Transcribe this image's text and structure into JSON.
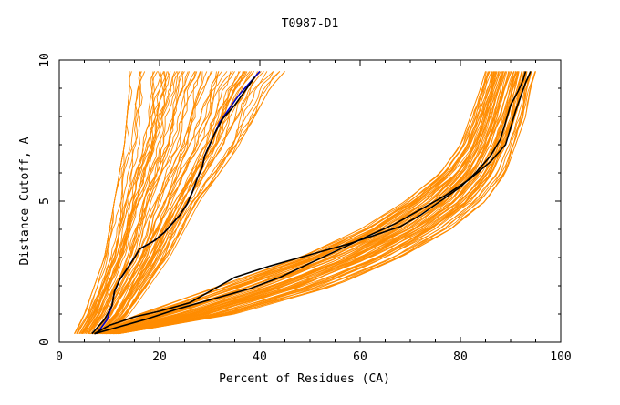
{
  "chart_data": {
    "type": "line",
    "title": "T0987-D1",
    "xlabel": "Percent of Residues (CA)",
    "ylabel": "Distance Cutoff, A",
    "xlim": [
      0,
      100
    ],
    "ylim": [
      0,
      10
    ],
    "x_ticks": [
      "0",
      "20",
      "40",
      "60",
      "80",
      "100"
    ],
    "y_ticks": [
      "0",
      "5",
      "10"
    ],
    "grid": false,
    "colors": {
      "background_series": "#ff8c00",
      "highlight_blue": "#0000cc",
      "highlight_black": "#000000"
    },
    "background_band_a": {
      "left_edge": [
        [
          3,
          0.3
        ],
        [
          5,
          1.0
        ],
        [
          7,
          2.0
        ],
        [
          9,
          3.0
        ],
        [
          10,
          4.0
        ],
        [
          11,
          5.0
        ],
        [
          12,
          6.0
        ],
        [
          13,
          7.0
        ],
        [
          13.5,
          8.0
        ],
        [
          14,
          9.0
        ],
        [
          14,
          9.6
        ]
      ],
      "right_edge": [
        [
          10,
          0.3
        ],
        [
          14,
          1.0
        ],
        [
          18,
          2.0
        ],
        [
          22,
          3.0
        ],
        [
          25,
          4.0
        ],
        [
          28,
          5.0
        ],
        [
          32,
          6.0
        ],
        [
          36,
          7.0
        ],
        [
          39,
          8.0
        ],
        [
          42,
          9.0
        ],
        [
          45,
          9.6
        ]
      ]
    },
    "background_band_b": {
      "left_edge": [
        [
          6,
          0.3
        ],
        [
          16,
          1.0
        ],
        [
          32,
          2.0
        ],
        [
          48,
          3.0
        ],
        [
          60,
          4.0
        ],
        [
          69,
          5.0
        ],
        [
          76,
          6.0
        ],
        [
          80,
          7.0
        ],
        [
          82,
          8.0
        ],
        [
          84,
          9.0
        ],
        [
          85,
          9.6
        ]
      ],
      "right_edge": [
        [
          12,
          0.3
        ],
        [
          35,
          1.0
        ],
        [
          55,
          2.0
        ],
        [
          68,
          3.0
        ],
        [
          78,
          4.0
        ],
        [
          85,
          5.0
        ],
        [
          89,
          6.0
        ],
        [
          91,
          7.0
        ],
        [
          93,
          8.0
        ],
        [
          94,
          9.0
        ],
        [
          95,
          9.6
        ]
      ]
    },
    "series": [
      {
        "color": "#0000cc",
        "x": [
          7.5,
          9.5,
          10.5,
          11,
          12,
          13.5,
          15,
          16,
          19,
          21,
          22.5,
          24,
          25.5,
          26.5,
          27.5,
          28.5,
          29,
          30,
          31,
          32,
          34,
          36,
          38,
          40
        ],
        "y": [
          0.3,
          0.8,
          1.3,
          1.8,
          2.2,
          2.6,
          3.0,
          3.3,
          3.6,
          3.9,
          4.2,
          4.5,
          4.9,
          5.3,
          5.8,
          6.2,
          6.6,
          7.0,
          7.4,
          7.8,
          8.3,
          8.8,
          9.2,
          9.6
        ]
      },
      {
        "color": "#000000",
        "x": [
          6.5,
          9,
          10.5,
          11,
          12,
          13.5,
          15,
          16,
          19,
          21,
          22.5,
          24,
          25.5,
          26.5,
          27.5,
          28.5,
          29,
          30,
          31,
          32.5,
          35,
          37,
          39
        ],
        "y": [
          0.3,
          0.8,
          1.3,
          1.8,
          2.2,
          2.6,
          3.0,
          3.3,
          3.6,
          3.9,
          4.2,
          4.5,
          4.9,
          5.3,
          5.8,
          6.2,
          6.6,
          7.0,
          7.4,
          7.9,
          8.4,
          8.9,
          9.4
        ]
      },
      {
        "color": "#000000",
        "x": [
          7,
          10,
          15,
          20,
          26,
          30,
          35,
          42,
          50,
          58,
          63,
          68,
          72,
          76,
          80,
          83,
          86,
          88,
          89,
          90,
          91.5,
          92.5,
          93
        ],
        "y": [
          0.3,
          0.6,
          0.9,
          1.1,
          1.4,
          1.8,
          2.3,
          2.7,
          3.1,
          3.5,
          3.8,
          4.1,
          4.5,
          5.0,
          5.5,
          6.0,
          6.6,
          7.2,
          7.8,
          8.4,
          8.9,
          9.3,
          9.6
        ]
      },
      {
        "color": "#000000",
        "x": [
          7,
          11,
          17,
          24,
          32,
          38,
          44,
          50,
          56,
          62,
          67,
          72,
          77,
          82,
          86,
          89,
          90,
          91,
          92,
          93,
          94
        ],
        "y": [
          0.3,
          0.5,
          0.8,
          1.2,
          1.6,
          1.9,
          2.3,
          2.8,
          3.3,
          3.8,
          4.2,
          4.7,
          5.2,
          5.8,
          6.4,
          7.0,
          7.6,
          8.2,
          8.7,
          9.2,
          9.6
        ]
      }
    ]
  }
}
